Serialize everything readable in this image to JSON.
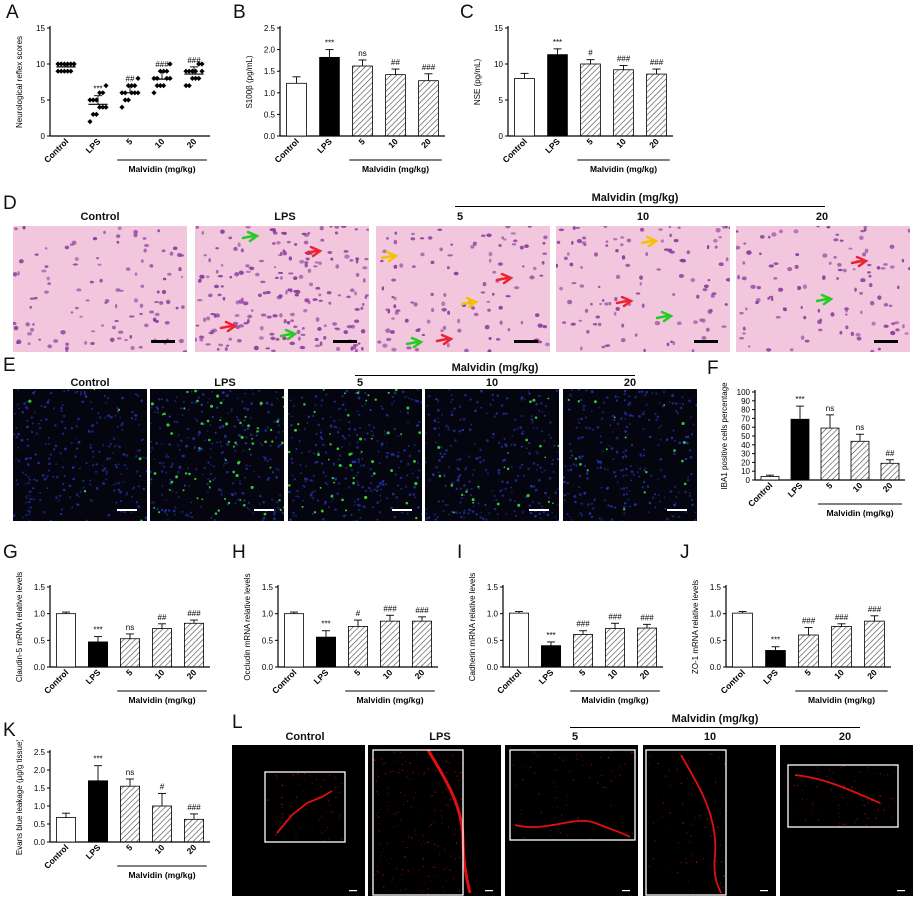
{
  "panels": {
    "A": {
      "letter": "A"
    },
    "B": {
      "letter": "B"
    },
    "C": {
      "letter": "C"
    },
    "D": {
      "letter": "D"
    },
    "E": {
      "letter": "E"
    },
    "F": {
      "letter": "F"
    },
    "G": {
      "letter": "G"
    },
    "H": {
      "letter": "H"
    },
    "I": {
      "letter": "I"
    },
    "J": {
      "letter": "J"
    },
    "K": {
      "letter": "K"
    },
    "L": {
      "letter": "L"
    }
  },
  "group_label": "Malvidin (mg/kg)",
  "image_rows": {
    "D": {
      "labels": [
        "Control",
        "LPS",
        "5",
        "10",
        "20"
      ],
      "colors": {
        "bg": "#f2c6dc",
        "nuclei": "#8a3a9c"
      }
    },
    "E": {
      "labels": [
        "Control",
        "LPS",
        "5",
        "10",
        "20"
      ],
      "colors": {
        "bg": "#050510",
        "nuclei": "#2233aa",
        "signal": "#33cc33"
      }
    },
    "L": {
      "labels": [
        "Control",
        "LPS",
        "5",
        "10",
        "20"
      ],
      "colors": {
        "bg": "#000000",
        "signal": "#e01010"
      }
    }
  },
  "chart_data": [
    {
      "id": "A",
      "type": "scatter",
      "ylabel": "Neurological reflex scores",
      "categories": [
        "Control",
        "LPS",
        "5",
        "10",
        "20"
      ],
      "ylim": [
        0,
        15
      ],
      "yticks": [
        0,
        5,
        10,
        15
      ],
      "series": [
        {
          "values": [
            9.6,
            4.4,
            6.0,
            7.9,
            8.6
          ]
        }
      ],
      "errors": [
        0.3,
        1.2,
        1.0,
        1.1,
        1.0
      ],
      "points": [
        [
          9,
          9,
          9,
          9,
          9,
          10,
          10,
          10,
          10,
          10,
          10,
          10
        ],
        [
          2,
          3,
          3,
          4,
          4,
          4,
          5,
          5,
          5,
          6,
          6,
          7
        ],
        [
          4,
          5,
          5,
          6,
          6,
          6,
          6,
          6,
          7,
          7,
          7,
          8
        ],
        [
          6,
          7,
          7,
          7,
          8,
          8,
          8,
          8,
          9,
          9,
          9,
          10
        ],
        [
          7,
          7,
          8,
          8,
          8,
          9,
          9,
          9,
          9,
          9,
          10,
          10
        ]
      ],
      "significance": [
        "",
        "***",
        "##",
        "###",
        "###"
      ],
      "fills": [
        "#000000",
        "#000000",
        "#000000",
        "#000000",
        "#000000"
      ]
    },
    {
      "id": "B",
      "type": "bar",
      "ylabel": "S100β (pg/mL)",
      "categories": [
        "Control",
        "LPS",
        "5",
        "10",
        "20"
      ],
      "ylim": [
        0,
        2.5
      ],
      "yticks": [
        0.0,
        0.5,
        1.0,
        1.5,
        2.0,
        2.5
      ],
      "series": [
        {
          "values": [
            1.22,
            1.82,
            1.62,
            1.42,
            1.28
          ]
        }
      ],
      "errors": [
        0.15,
        0.18,
        0.14,
        0.13,
        0.16
      ],
      "significance": [
        "",
        "***",
        "ns",
        "##",
        "###"
      ],
      "fills": [
        "white",
        "black",
        "hatch",
        "hatch",
        "hatch"
      ]
    },
    {
      "id": "C",
      "type": "bar",
      "ylabel": "NSE (pg/mL)",
      "categories": [
        "Control",
        "LPS",
        "5",
        "10",
        "20"
      ],
      "ylim": [
        0,
        15
      ],
      "yticks": [
        0,
        5,
        10,
        15
      ],
      "series": [
        {
          "values": [
            8.0,
            11.3,
            10.0,
            9.2,
            8.6
          ]
        }
      ],
      "errors": [
        0.7,
        0.8,
        0.6,
        0.6,
        0.7
      ],
      "significance": [
        "",
        "***",
        "#",
        "###",
        "###"
      ],
      "fills": [
        "white",
        "black",
        "hatch",
        "hatch",
        "hatch"
      ]
    },
    {
      "id": "F",
      "type": "bar",
      "ylabel": "IBA1 positive cells percentage",
      "categories": [
        "Control",
        "LPS",
        "5",
        "10",
        "20"
      ],
      "ylim": [
        0,
        100
      ],
      "yticks": [
        0,
        10,
        20,
        30,
        40,
        50,
        60,
        70,
        80,
        90,
        100
      ],
      "series": [
        {
          "values": [
            4,
            69,
            59,
            44,
            19
          ]
        }
      ],
      "errors": [
        1.5,
        15,
        15,
        8,
        4
      ],
      "significance": [
        "",
        "***",
        "ns",
        "ns",
        "##"
      ],
      "fills": [
        "white",
        "black",
        "hatch",
        "hatch",
        "hatch"
      ]
    },
    {
      "id": "G",
      "type": "bar",
      "ylabel": "Claudin-5 mRNA relative levels",
      "categories": [
        "Control",
        "LPS",
        "5",
        "10",
        "20"
      ],
      "ylim": [
        0,
        1.5
      ],
      "yticks": [
        0.0,
        0.5,
        1.0,
        1.5
      ],
      "series": [
        {
          "values": [
            1.0,
            0.47,
            0.53,
            0.72,
            0.82
          ]
        }
      ],
      "errors": [
        0.03,
        0.1,
        0.09,
        0.09,
        0.06
      ],
      "significance": [
        "",
        "***",
        "ns",
        "##",
        "###"
      ],
      "fills": [
        "white",
        "black",
        "hatch",
        "hatch",
        "hatch"
      ]
    },
    {
      "id": "H",
      "type": "bar",
      "ylabel": "Occludin mRNA relative levels",
      "categories": [
        "Control",
        "LPS",
        "5",
        "10",
        "20"
      ],
      "ylim": [
        0,
        1.5
      ],
      "yticks": [
        0.0,
        0.5,
        1.0,
        1.5
      ],
      "series": [
        {
          "values": [
            1.0,
            0.56,
            0.76,
            0.86,
            0.86
          ]
        }
      ],
      "errors": [
        0.03,
        0.12,
        0.12,
        0.11,
        0.08
      ],
      "significance": [
        "",
        "***",
        "#",
        "###",
        "###"
      ],
      "fills": [
        "white",
        "black",
        "hatch",
        "hatch",
        "hatch"
      ]
    },
    {
      "id": "I",
      "type": "bar",
      "ylabel": "Cadherin mRNA relative levels",
      "categories": [
        "Control",
        "LPS",
        "5",
        "10",
        "20"
      ],
      "ylim": [
        0,
        1.5
      ],
      "yticks": [
        0.0,
        0.5,
        1.0,
        1.5
      ],
      "series": [
        {
          "values": [
            1.01,
            0.4,
            0.61,
            0.72,
            0.73
          ]
        }
      ],
      "errors": [
        0.03,
        0.07,
        0.07,
        0.1,
        0.07
      ],
      "significance": [
        "",
        "***",
        "###",
        "###",
        "###"
      ],
      "fills": [
        "white",
        "black",
        "hatch",
        "hatch",
        "hatch"
      ]
    },
    {
      "id": "J",
      "type": "bar",
      "ylabel": "ZO-1 mRNA relative levels",
      "categories": [
        "Control",
        "LPS",
        "5",
        "10",
        "20"
      ],
      "ylim": [
        0,
        1.5
      ],
      "yticks": [
        0.0,
        0.5,
        1.0,
        1.5
      ],
      "series": [
        {
          "values": [
            1.01,
            0.31,
            0.6,
            0.76,
            0.86
          ]
        }
      ],
      "errors": [
        0.03,
        0.07,
        0.14,
        0.05,
        0.1
      ],
      "significance": [
        "",
        "***",
        "###",
        "###",
        "###"
      ],
      "fills": [
        "white",
        "black",
        "hatch",
        "hatch",
        "hatch"
      ]
    },
    {
      "id": "K",
      "type": "bar",
      "ylabel": "Evans blue leakage (μg/g tissue)",
      "categories": [
        "Control",
        "LPS",
        "5",
        "10",
        "20"
      ],
      "ylim": [
        0,
        2.5
      ],
      "yticks": [
        0.0,
        0.5,
        1.0,
        1.5,
        2.0,
        2.5
      ],
      "series": [
        {
          "values": [
            0.68,
            1.7,
            1.55,
            1.0,
            0.63
          ]
        }
      ],
      "errors": [
        0.12,
        0.42,
        0.2,
        0.35,
        0.15
      ],
      "significance": [
        "",
        "***",
        "ns",
        "#",
        "###"
      ],
      "fills": [
        "white",
        "black",
        "hatch",
        "hatch",
        "hatch"
      ]
    }
  ]
}
